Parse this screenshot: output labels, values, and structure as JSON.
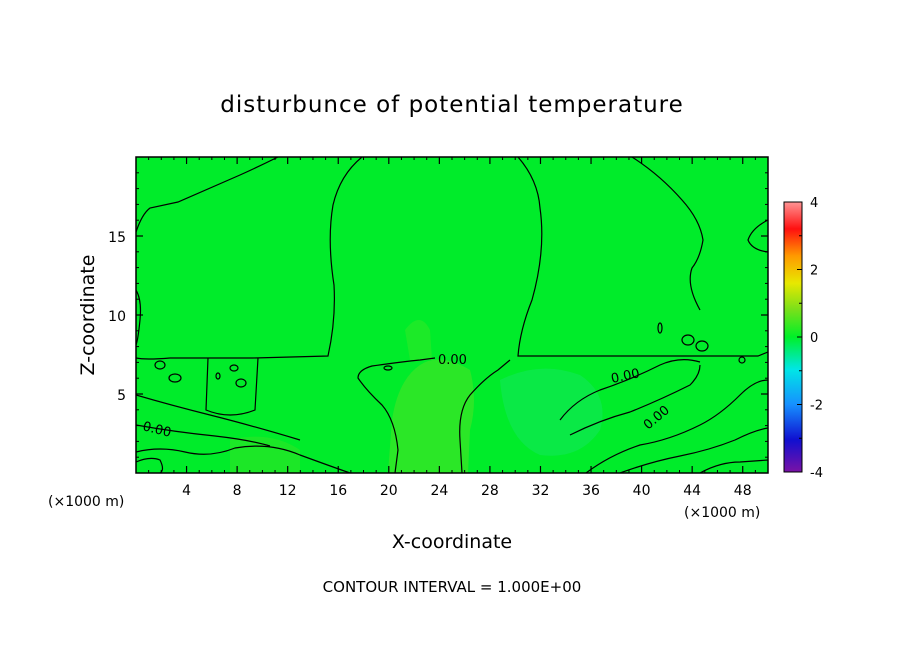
{
  "chart_data": {
    "type": "heatmap",
    "title": "disturbunce of potential temperature",
    "xlabel": "X-coordinate",
    "ylabel": "Z-coordinate",
    "x_unit_label": "(×1000 m)",
    "z_unit_label": "(×1000 m)",
    "xlim": [
      0,
      50
    ],
    "ylim": [
      0,
      20
    ],
    "x_ticks": [
      4,
      8,
      12,
      16,
      20,
      24,
      28,
      32,
      36,
      40,
      44,
      48
    ],
    "y_ticks": [
      5,
      10,
      15
    ],
    "colorbar": {
      "min": -4,
      "max": 4,
      "ticks": [
        4,
        2,
        0,
        -2,
        -4
      ],
      "stops": [
        "#7a12a6",
        "#1010d0",
        "#1690ff",
        "#00e6e6",
        "#00f028",
        "#78e01a",
        "#e8e800",
        "#ff9a00",
        "#ff1010",
        "#ff9494"
      ]
    },
    "field_value_approx": 0.0,
    "contour_labels": [
      "0.00",
      "0.00",
      "0.00",
      "0.00"
    ],
    "contour_interval_text": "CONTOUR INTERVAL = 1.000E+00"
  }
}
